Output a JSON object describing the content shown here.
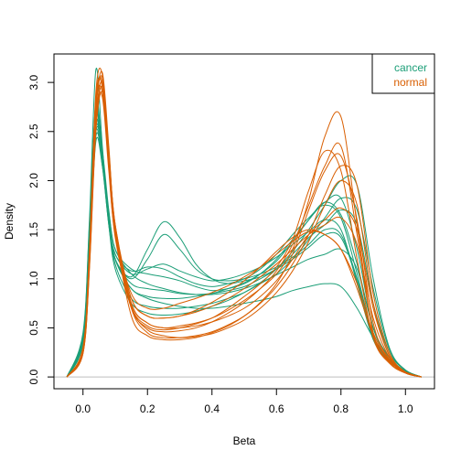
{
  "chart_data": {
    "type": "line",
    "title": "",
    "xlabel": "Beta",
    "ylabel": "Density",
    "xlim": [
      -0.09,
      1.09
    ],
    "ylim": [
      -0.12,
      3.29
    ],
    "x_ticks": [
      "0.0",
      "0.2",
      "0.4",
      "0.6",
      "0.8",
      "1.0"
    ],
    "y_ticks": [
      "0.0",
      "0.5",
      "1.0",
      "1.5",
      "2.0",
      "2.5",
      "3.0"
    ],
    "x_tick_values": [
      0.0,
      0.2,
      0.4,
      0.6,
      0.8,
      1.0
    ],
    "y_tick_values": [
      0.0,
      0.5,
      1.0,
      1.5,
      2.0,
      2.5,
      3.0
    ],
    "grid": false,
    "zero_line": true,
    "legend": {
      "position": "top-right",
      "entries": [
        {
          "label": "cancer",
          "color": "#1b9e77"
        },
        {
          "label": "normal",
          "color": "#d95f02"
        }
      ]
    },
    "x": [
      -0.05,
      0.0,
      0.02,
      0.04,
      0.06,
      0.08,
      0.1,
      0.15,
      0.2,
      0.25,
      0.3,
      0.35,
      0.4,
      0.45,
      0.5,
      0.55,
      0.6,
      0.65,
      0.7,
      0.75,
      0.8,
      0.85,
      0.9,
      0.95,
      1.0,
      1.05
    ],
    "series": [
      {
        "group": "cancer",
        "values": [
          0.0,
          0.45,
          1.6,
          3.13,
          2.35,
          1.6,
          1.25,
          1.05,
          1.1,
          1.15,
          1.08,
          1.02,
          0.98,
          1.0,
          1.05,
          1.12,
          1.22,
          1.35,
          1.48,
          1.6,
          1.5,
          0.95,
          0.38,
          0.16,
          0.05,
          0.0
        ]
      },
      {
        "group": "cancer",
        "values": [
          0.0,
          0.4,
          1.5,
          2.8,
          2.3,
          1.6,
          1.2,
          1.0,
          1.2,
          1.45,
          1.3,
          1.1,
          1.0,
          0.98,
          1.0,
          1.05,
          1.12,
          1.22,
          1.35,
          1.5,
          1.45,
          1.0,
          0.42,
          0.17,
          0.05,
          0.0
        ]
      },
      {
        "group": "cancer",
        "values": [
          0.0,
          0.42,
          1.55,
          2.7,
          2.2,
          1.55,
          1.2,
          1.02,
          1.3,
          1.58,
          1.42,
          1.15,
          1.0,
          0.95,
          0.98,
          1.02,
          1.1,
          1.2,
          1.32,
          1.45,
          1.42,
          0.98,
          0.4,
          0.16,
          0.05,
          0.0
        ]
      },
      {
        "group": "cancer",
        "values": [
          0.0,
          0.38,
          1.45,
          2.6,
          2.25,
          1.62,
          1.25,
          1.08,
          1.12,
          1.1,
          1.02,
          0.95,
          0.92,
          0.95,
          1.0,
          1.1,
          1.25,
          1.45,
          1.62,
          1.75,
          1.62,
          1.05,
          0.42,
          0.18,
          0.06,
          0.0
        ]
      },
      {
        "group": "cancer",
        "values": [
          0.0,
          0.35,
          1.4,
          2.5,
          2.3,
          1.7,
          1.3,
          1.1,
          1.05,
          1.02,
          0.98,
          0.92,
          0.88,
          0.9,
          0.95,
          1.05,
          1.2,
          1.4,
          1.6,
          1.78,
          1.82,
          1.3,
          0.5,
          0.2,
          0.06,
          0.0
        ]
      },
      {
        "group": "cancer",
        "values": [
          0.0,
          0.4,
          1.5,
          2.75,
          2.25,
          1.6,
          1.2,
          0.95,
          0.9,
          0.88,
          0.85,
          0.84,
          0.85,
          0.88,
          0.92,
          1.0,
          1.1,
          1.25,
          1.42,
          1.55,
          1.7,
          1.55,
          0.75,
          0.25,
          0.07,
          0.0
        ]
      },
      {
        "group": "cancer",
        "values": [
          0.0,
          0.36,
          1.38,
          2.45,
          2.2,
          1.68,
          1.3,
          1.05,
          0.95,
          0.9,
          0.86,
          0.84,
          0.84,
          0.86,
          0.9,
          0.96,
          1.04,
          1.12,
          1.2,
          1.25,
          1.3,
          1.1,
          0.5,
          0.2,
          0.06,
          0.0
        ]
      },
      {
        "group": "cancer",
        "values": [
          0.0,
          0.34,
          1.3,
          2.4,
          2.15,
          1.6,
          1.2,
          0.9,
          0.8,
          0.75,
          0.72,
          0.7,
          0.7,
          0.72,
          0.75,
          0.78,
          0.82,
          0.88,
          0.92,
          0.95,
          0.92,
          0.7,
          0.4,
          0.18,
          0.06,
          0.0
        ]
      },
      {
        "group": "cancer",
        "values": [
          0.0,
          0.37,
          1.42,
          2.55,
          2.2,
          1.58,
          1.15,
          0.8,
          0.72,
          0.7,
          0.7,
          0.72,
          0.75,
          0.8,
          0.86,
          0.95,
          1.05,
          1.2,
          1.4,
          1.62,
          1.82,
          1.7,
          0.9,
          0.28,
          0.07,
          0.0
        ]
      },
      {
        "group": "cancer",
        "values": [
          0.0,
          0.36,
          1.4,
          2.5,
          2.15,
          1.55,
          1.1,
          0.75,
          0.65,
          0.63,
          0.64,
          0.67,
          0.72,
          0.78,
          0.86,
          0.96,
          1.1,
          1.28,
          1.5,
          1.75,
          2.0,
          1.95,
          1.0,
          0.3,
          0.07,
          0.0
        ]
      },
      {
        "group": "cancer",
        "values": [
          0.0,
          0.38,
          1.45,
          2.6,
          2.2,
          1.62,
          1.2,
          0.9,
          0.82,
          0.8,
          0.8,
          0.82,
          0.85,
          0.9,
          0.96,
          1.05,
          1.18,
          1.38,
          1.6,
          1.78,
          1.65,
          1.15,
          0.5,
          0.2,
          0.06,
          0.0
        ]
      },
      {
        "group": "normal",
        "values": [
          0.0,
          0.3,
          1.3,
          2.9,
          3.08,
          2.3,
          1.5,
          0.75,
          0.55,
          0.5,
          0.52,
          0.55,
          0.6,
          0.68,
          0.78,
          0.9,
          1.05,
          1.3,
          1.8,
          2.45,
          2.65,
          1.55,
          0.45,
          0.15,
          0.04,
          0.0
        ]
      },
      {
        "group": "normal",
        "values": [
          0.0,
          0.28,
          1.25,
          2.8,
          3.0,
          2.2,
          1.45,
          0.72,
          0.52,
          0.48,
          0.5,
          0.54,
          0.6,
          0.7,
          0.82,
          0.95,
          1.12,
          1.4,
          1.9,
          2.3,
          2.1,
          1.2,
          0.4,
          0.14,
          0.04,
          0.0
        ]
      },
      {
        "group": "normal",
        "values": [
          0.0,
          0.26,
          1.2,
          2.7,
          3.1,
          2.35,
          1.5,
          0.62,
          0.42,
          0.38,
          0.38,
          0.4,
          0.45,
          0.52,
          0.62,
          0.76,
          0.95,
          1.25,
          1.7,
          2.1,
          2.25,
          1.6,
          0.55,
          0.18,
          0.04,
          0.0
        ]
      },
      {
        "group": "normal",
        "values": [
          0.0,
          0.3,
          1.28,
          2.85,
          2.95,
          2.15,
          1.42,
          0.7,
          0.5,
          0.46,
          0.47,
          0.5,
          0.56,
          0.65,
          0.76,
          0.9,
          1.08,
          1.35,
          1.75,
          2.15,
          2.35,
          1.45,
          0.45,
          0.15,
          0.04,
          0.0
        ]
      },
      {
        "group": "normal",
        "values": [
          0.0,
          0.25,
          1.15,
          2.6,
          3.0,
          2.3,
          1.55,
          0.75,
          0.55,
          0.5,
          0.5,
          0.52,
          0.56,
          0.62,
          0.7,
          0.82,
          0.98,
          1.2,
          1.45,
          1.6,
          1.72,
          1.5,
          0.7,
          0.22,
          0.05,
          0.0
        ]
      },
      {
        "group": "normal",
        "values": [
          0.0,
          0.24,
          1.1,
          2.5,
          2.9,
          2.25,
          1.55,
          0.8,
          0.62,
          0.6,
          0.62,
          0.66,
          0.72,
          0.8,
          0.9,
          1.02,
          1.15,
          1.3,
          1.45,
          1.55,
          1.62,
          1.35,
          0.6,
          0.2,
          0.05,
          0.0
        ]
      },
      {
        "group": "normal",
        "values": [
          0.0,
          0.26,
          1.18,
          2.65,
          2.85,
          2.1,
          1.45,
          0.85,
          0.7,
          0.7,
          0.75,
          0.8,
          0.86,
          0.93,
          1.02,
          1.12,
          1.25,
          1.38,
          1.48,
          1.45,
          1.3,
          0.95,
          0.45,
          0.17,
          0.05,
          0.0
        ]
      },
      {
        "group": "normal",
        "values": [
          0.0,
          0.28,
          1.22,
          2.75,
          2.9,
          2.15,
          1.48,
          0.8,
          0.62,
          0.6,
          0.62,
          0.68,
          0.76,
          0.86,
          0.98,
          1.12,
          1.28,
          1.42,
          1.5,
          1.45,
          1.3,
          0.9,
          0.42,
          0.16,
          0.05,
          0.0
        ]
      },
      {
        "group": "normal",
        "values": [
          0.0,
          0.24,
          1.12,
          2.55,
          2.95,
          2.25,
          1.5,
          0.72,
          0.48,
          0.42,
          0.4,
          0.41,
          0.44,
          0.5,
          0.58,
          0.7,
          0.86,
          1.08,
          1.38,
          1.75,
          2.0,
          1.75,
          0.75,
          0.22,
          0.05,
          0.0
        ]
      },
      {
        "group": "normal",
        "values": [
          0.0,
          0.27,
          1.2,
          2.7,
          3.05,
          2.3,
          1.52,
          0.7,
          0.45,
          0.4,
          0.4,
          0.42,
          0.46,
          0.53,
          0.62,
          0.75,
          0.92,
          1.15,
          1.45,
          1.85,
          2.15,
          1.95,
          0.85,
          0.25,
          0.05,
          0.0
        ]
      }
    ]
  }
}
